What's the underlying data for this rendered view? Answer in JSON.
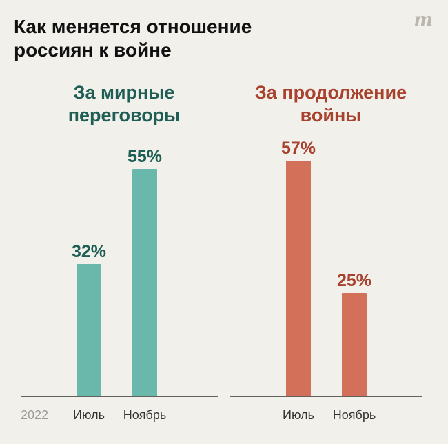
{
  "header": {
    "title": "Как меняется отношение россиян к войне",
    "logo_text": "m"
  },
  "colors": {
    "peace": "#6ab8ac",
    "peace_text": "#1e5e55",
    "war": "#d2705a",
    "war_text": "#a8412d",
    "axis": "#333333",
    "year": "#9a9a9a",
    "category": "#333333"
  },
  "chart_data": [
    {
      "type": "bar",
      "title": "За мирные переговоры",
      "categories": [
        "Июль",
        "Ноябрь"
      ],
      "values": [
        32,
        55
      ],
      "value_labels": [
        "32%",
        "55%"
      ],
      "ylim": [
        0,
        60
      ],
      "unit": "%",
      "year_label": "2022"
    },
    {
      "type": "bar",
      "title": "За продолжение войны",
      "categories": [
        "Июль",
        "Ноябрь"
      ],
      "values": [
        57,
        25
      ],
      "value_labels": [
        "57%",
        "25%"
      ],
      "ylim": [
        0,
        60
      ],
      "unit": "%"
    }
  ]
}
